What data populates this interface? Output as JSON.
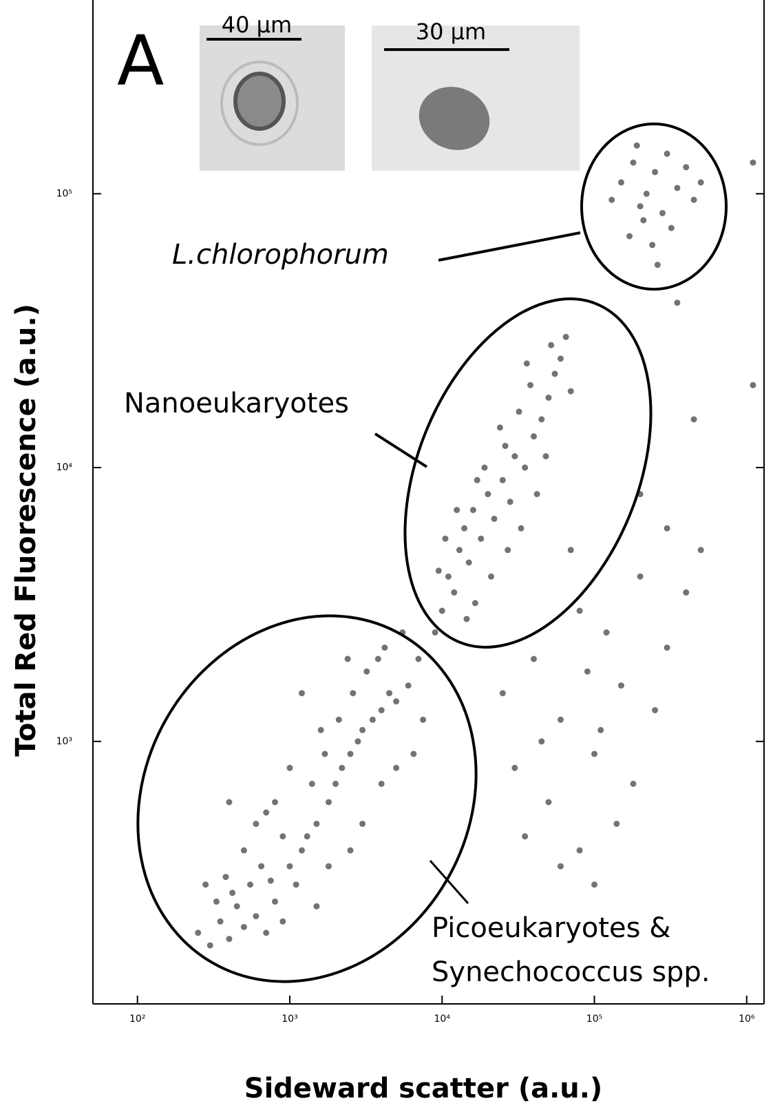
{
  "chart_data": {
    "type": "scatter",
    "panel_label": "A",
    "x_label": "Sideward scatter (a.u.)",
    "y_label": "Total Red Fluorescence (a.u.)",
    "xscale": "log",
    "yscale": "log",
    "xlim": [
      51,
      1300000
    ],
    "ylim": [
      110,
      510000
    ],
    "xticks": [
      {
        "value": 100,
        "label": "10²"
      },
      {
        "value": 1000,
        "label": "10³"
      },
      {
        "value": 10000,
        "label": "10⁴"
      },
      {
        "value": 100000,
        "label": "10⁵"
      },
      {
        "value": 1000000,
        "label": "10⁶"
      }
    ],
    "yticks": [
      {
        "value": 1000,
        "label": "10³"
      },
      {
        "value": 10000,
        "label": "10⁴"
      },
      {
        "value": 100000,
        "label": "10⁵"
      }
    ],
    "color": "#000000",
    "annotations": [
      "L.chlorophorum",
      "Nanoeukaryotes",
      "Picoeukaryotes &",
      "Synechococcus spp."
    ],
    "scale_bars": [
      "40 µm",
      "30 µm"
    ],
    "x": [
      250,
      300,
      350,
      400,
      450,
      500,
      600,
      700,
      800,
      900,
      280,
      330,
      380,
      420,
      550,
      650,
      750,
      1000,
      1200,
      1100,
      1300,
      1500,
      1800,
      2000,
      2200,
      2500,
      2800,
      3000,
      3500,
      4000,
      4500,
      5000,
      6000,
      3200,
      3800,
      4200,
      2600,
      2100,
      1700,
      1400,
      600,
      500,
      800,
      1000,
      1600,
      2400,
      5500,
      7000,
      7500,
      6500,
      5000,
      4000,
      3000,
      2500,
      1800,
      1500,
      900,
      700,
      400,
      1200,
      9000,
      10000,
      12000,
      11000,
      13000,
      15000,
      14000,
      16000,
      18000,
      20000,
      22000,
      25000,
      28000,
      30000,
      35000,
      40000,
      45000,
      50000,
      55000,
      60000,
      38000,
      32000,
      26000,
      24000,
      19000,
      17000,
      12500,
      10500,
      9500,
      21000,
      27000,
      33000,
      42000,
      48000,
      65000,
      52000,
      36000,
      70000,
      16500,
      14500,
      130000,
      150000,
      180000,
      200000,
      220000,
      250000,
      280000,
      300000,
      350000,
      400000,
      450000,
      500000,
      170000,
      240000,
      320000,
      260000,
      190000,
      210000,
      25000,
      30000,
      40000,
      50000,
      60000,
      80000,
      100000,
      120000,
      150000,
      180000,
      200000,
      250000,
      300000,
      400000,
      500000,
      80000,
      100000,
      60000,
      140000,
      35000,
      45000,
      70000,
      90000,
      110000,
      1100000,
      1100000,
      450000,
      350000,
      200000,
      300000
    ],
    "values": [
      200,
      180,
      220,
      190,
      250,
      210,
      230,
      200,
      260,
      220,
      300,
      260,
      320,
      280,
      300,
      350,
      310,
      350,
      400,
      300,
      450,
      500,
      600,
      700,
      800,
      900,
      1000,
      1100,
      1200,
      1300,
      1500,
      1400,
      1600,
      1800,
      2000,
      2200,
      1500,
      1200,
      900,
      700,
      500,
      400,
      600,
      800,
      1100,
      2000,
      2500,
      2000,
      1200,
      900,
      800,
      700,
      500,
      400,
      350,
      250,
      450,
      550,
      600,
      1500,
      2500,
      3000,
      3500,
      4000,
      5000,
      4500,
      6000,
      7000,
      5500,
      8000,
      6500,
      9000,
      7500,
      11000,
      10000,
      13000,
      15000,
      18000,
      22000,
      25000,
      20000,
      16000,
      12000,
      14000,
      10000,
      9000,
      7000,
      5500,
      4200,
      4000,
      5000,
      6000,
      8000,
      11000,
      30000,
      28000,
      24000,
      19000,
      3200,
      2800,
      95000,
      110000,
      130000,
      90000,
      100000,
      120000,
      85000,
      140000,
      105000,
      125000,
      95000,
      110000,
      70000,
      65000,
      75000,
      55000,
      150000,
      80000,
      1500,
      800,
      2000,
      600,
      1200,
      3000,
      900,
      2500,
      1600,
      700,
      4000,
      1300,
      2200,
      3500,
      5000,
      400,
      300,
      350,
      500,
      450,
      1000,
      5000,
      1800,
      1100,
      130000,
      20000,
      15000,
      40000,
      8000,
      6000
    ]
  }
}
